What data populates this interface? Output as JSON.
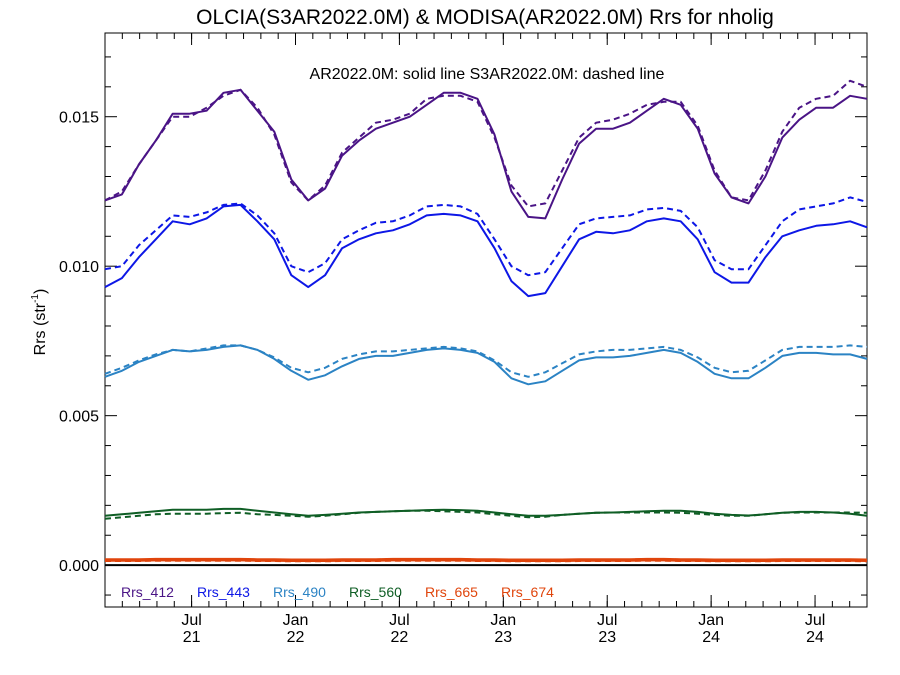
{
  "chart_data": {
    "type": "line",
    "title": "OLCIA(S3AR2022.0M) & MODISA(AR2022.0M)  Rrs for nholig",
    "annotation": "AR2022.0M: solid line   S3AR2022.0M: dashed line",
    "ylabel_main": "Rrs (str",
    "ylabel_sup": "-1",
    "ylabel_tail": ")",
    "xlim": [
      0,
      44
    ],
    "ylim": [
      -0.0014,
      0.0178
    ],
    "yticks": [
      {
        "value": 0.0,
        "label": "0.000"
      },
      {
        "value": 0.005,
        "label": "0.005"
      },
      {
        "value": 0.01,
        "label": "0.010"
      },
      {
        "value": 0.015,
        "label": "0.015"
      }
    ],
    "xticks": [
      {
        "x": 5,
        "month": "Jul",
        "year": "21"
      },
      {
        "x": 11,
        "month": "Jan",
        "year": "22"
      },
      {
        "x": 17,
        "month": "Jul",
        "year": "22"
      },
      {
        "x": 23,
        "month": "Jan",
        "year": "23"
      },
      {
        "x": 29,
        "month": "Jul",
        "year": "23"
      },
      {
        "x": 35,
        "month": "Jan",
        "year": "24"
      },
      {
        "x": 41,
        "month": "Jul",
        "year": "24"
      }
    ],
    "zero_line": 0.0,
    "series": [
      {
        "name": "Rrs_412",
        "color": "#4a1486",
        "solid": [
          0.0122,
          0.0124,
          0.0134,
          0.0142,
          0.0151,
          0.0151,
          0.0152,
          0.0158,
          0.0159,
          0.0152,
          0.0145,
          0.0129,
          0.0122,
          0.0126,
          0.0137,
          0.0142,
          0.0146,
          0.0148,
          0.015,
          0.0154,
          0.0158,
          0.0158,
          0.0156,
          0.0144,
          0.0125,
          0.01165,
          0.0116,
          0.0129,
          0.0141,
          0.0146,
          0.0146,
          0.0148,
          0.0152,
          0.0156,
          0.0154,
          0.0146,
          0.0131,
          0.0123,
          0.0121,
          0.013,
          0.0143,
          0.0149,
          0.0153,
          0.0153,
          0.0157,
          0.0156
        ],
        "dashed": [
          0.0122,
          0.0125,
          0.0134,
          0.0142,
          0.015,
          0.015,
          0.0153,
          0.0157,
          0.0159,
          0.0153,
          0.0144,
          0.0128,
          0.0122,
          0.0127,
          0.0138,
          0.0143,
          0.0148,
          0.0149,
          0.0151,
          0.0156,
          0.0157,
          0.0157,
          0.0155,
          0.0143,
          0.0127,
          0.012,
          0.0121,
          0.0132,
          0.0143,
          0.0148,
          0.0149,
          0.0151,
          0.0154,
          0.0155,
          0.0155,
          0.0147,
          0.0132,
          0.0123,
          0.0122,
          0.0132,
          0.0145,
          0.0153,
          0.0156,
          0.0157,
          0.0162,
          0.016
        ]
      },
      {
        "name": "Rrs_443",
        "color": "#0d17e6",
        "solid": [
          0.0093,
          0.0096,
          0.0103,
          0.0109,
          0.0115,
          0.0114,
          0.0116,
          0.012,
          0.01205,
          0.0115,
          0.0109,
          0.0097,
          0.0093,
          0.0097,
          0.0106,
          0.0109,
          0.0111,
          0.0112,
          0.0114,
          0.0117,
          0.01175,
          0.0117,
          0.0115,
          0.0106,
          0.0095,
          0.009,
          0.0091,
          0.01,
          0.0109,
          0.01115,
          0.0111,
          0.0112,
          0.0115,
          0.0116,
          0.0115,
          0.0109,
          0.0098,
          0.00945,
          0.00945,
          0.0103,
          0.011,
          0.0112,
          0.01135,
          0.0114,
          0.0115,
          0.0113
        ],
        "dashed": [
          0.0099,
          0.01,
          0.0107,
          0.0112,
          0.0117,
          0.01165,
          0.0118,
          0.01205,
          0.0121,
          0.0117,
          0.0111,
          0.01,
          0.0098,
          0.0101,
          0.0109,
          0.0112,
          0.01145,
          0.0115,
          0.0117,
          0.012,
          0.01205,
          0.012,
          0.01175,
          0.0109,
          0.01,
          0.0097,
          0.0098,
          0.0106,
          0.0114,
          0.0116,
          0.01165,
          0.0117,
          0.0119,
          0.01195,
          0.01185,
          0.0113,
          0.0102,
          0.0099,
          0.0099,
          0.0107,
          0.0115,
          0.0119,
          0.012,
          0.0121,
          0.0123,
          0.01215
        ]
      },
      {
        "name": "Rrs_490",
        "color": "#2b83c4",
        "solid": [
          0.0063,
          0.0065,
          0.0068,
          0.007,
          0.0072,
          0.00715,
          0.0072,
          0.0073,
          0.00735,
          0.0072,
          0.0069,
          0.0065,
          0.0062,
          0.00635,
          0.00665,
          0.0069,
          0.007,
          0.007,
          0.0071,
          0.0072,
          0.00725,
          0.0072,
          0.0071,
          0.0068,
          0.00625,
          0.00605,
          0.00615,
          0.0065,
          0.00685,
          0.00695,
          0.00695,
          0.007,
          0.0071,
          0.0072,
          0.0071,
          0.0068,
          0.0064,
          0.00625,
          0.00625,
          0.0066,
          0.007,
          0.0071,
          0.0071,
          0.00705,
          0.00705,
          0.0069
        ],
        "dashed": [
          0.0064,
          0.0066,
          0.00685,
          0.00705,
          0.0072,
          0.00715,
          0.00725,
          0.00735,
          0.00735,
          0.0072,
          0.00695,
          0.0066,
          0.00645,
          0.0066,
          0.0069,
          0.00705,
          0.00715,
          0.00715,
          0.0072,
          0.00725,
          0.0073,
          0.00725,
          0.00715,
          0.00685,
          0.00645,
          0.0063,
          0.00645,
          0.00675,
          0.00705,
          0.00715,
          0.0072,
          0.0072,
          0.00725,
          0.0073,
          0.0072,
          0.00695,
          0.0066,
          0.00645,
          0.0065,
          0.00685,
          0.0072,
          0.0073,
          0.0073,
          0.0073,
          0.00735,
          0.0073
        ]
      },
      {
        "name": "Rrs_560",
        "color": "#0f5e25",
        "solid": [
          0.00165,
          0.0017,
          0.00175,
          0.0018,
          0.00185,
          0.00185,
          0.00185,
          0.00188,
          0.00188,
          0.00182,
          0.00176,
          0.0017,
          0.00165,
          0.00168,
          0.00172,
          0.00176,
          0.00178,
          0.0018,
          0.00182,
          0.00184,
          0.00185,
          0.00184,
          0.00182,
          0.00176,
          0.0017,
          0.00165,
          0.00165,
          0.00168,
          0.00172,
          0.00175,
          0.00176,
          0.00178,
          0.0018,
          0.00182,
          0.00182,
          0.00178,
          0.00172,
          0.00168,
          0.00166,
          0.0017,
          0.00175,
          0.00178,
          0.00178,
          0.00176,
          0.00172,
          0.00165
        ],
        "dashed": [
          0.00155,
          0.0016,
          0.00165,
          0.0017,
          0.00172,
          0.00172,
          0.00172,
          0.00174,
          0.00175,
          0.0017,
          0.00168,
          0.00165,
          0.00162,
          0.00165,
          0.0017,
          0.00175,
          0.00178,
          0.0018,
          0.00182,
          0.00182,
          0.0018,
          0.00178,
          0.00176,
          0.0017,
          0.00165,
          0.0016,
          0.00162,
          0.00168,
          0.00172,
          0.00175,
          0.00176,
          0.00176,
          0.00176,
          0.00176,
          0.00175,
          0.00172,
          0.00168,
          0.00165,
          0.00165,
          0.0017,
          0.00175,
          0.00176,
          0.00176,
          0.00176,
          0.00176,
          0.00175
        ]
      },
      {
        "name": "Rrs_665",
        "color": "#e0450c",
        "solid": [
          0.0002,
          0.0002,
          0.0002,
          0.00021,
          0.00021,
          0.00021,
          0.00021,
          0.00021,
          0.00021,
          0.0002,
          0.0002,
          0.00019,
          0.00019,
          0.00019,
          0.0002,
          0.0002,
          0.0002,
          0.00021,
          0.00021,
          0.00021,
          0.00021,
          0.00021,
          0.0002,
          0.0002,
          0.00019,
          0.00019,
          0.00019,
          0.00019,
          0.0002,
          0.0002,
          0.0002,
          0.0002,
          0.00021,
          0.00021,
          0.0002,
          0.0002,
          0.00019,
          0.00019,
          0.00019,
          0.00019,
          0.0002,
          0.0002,
          0.0002,
          0.0002,
          0.0002,
          0.00019
        ],
        "dashed": [
          0.00018,
          0.00018,
          0.00019,
          0.00019,
          0.0002,
          0.0002,
          0.0002,
          0.0002,
          0.0002,
          0.00019,
          0.00019,
          0.00018,
          0.00018,
          0.00018,
          0.00019,
          0.00019,
          0.00019,
          0.0002,
          0.0002,
          0.0002,
          0.0002,
          0.0002,
          0.00019,
          0.00019,
          0.00018,
          0.00018,
          0.00018,
          0.00018,
          0.00019,
          0.00019,
          0.00019,
          0.00019,
          0.0002,
          0.0002,
          0.00019,
          0.00019,
          0.00018,
          0.00018,
          0.00018,
          0.00018,
          0.00019,
          0.00019,
          0.00019,
          0.00019,
          0.00019,
          0.00018
        ]
      },
      {
        "name": "Rrs_674",
        "color": "#e0450c",
        "solid": [
          0.00015,
          0.00015,
          0.00015,
          0.00016,
          0.00016,
          0.00016,
          0.00016,
          0.00016,
          0.00016,
          0.00015,
          0.00015,
          0.00014,
          0.00014,
          0.00014,
          0.00015,
          0.00015,
          0.00015,
          0.00016,
          0.00016,
          0.00016,
          0.00016,
          0.00016,
          0.00015,
          0.00015,
          0.00014,
          0.00014,
          0.00014,
          0.00014,
          0.00015,
          0.00015,
          0.00015,
          0.00015,
          0.00016,
          0.00016,
          0.00015,
          0.00015,
          0.00014,
          0.00014,
          0.00014,
          0.00014,
          0.00015,
          0.00015,
          0.00015,
          0.00015,
          0.00015,
          0.00014
        ],
        "dashed": [
          0.00014,
          0.00014,
          0.00014,
          0.00015,
          0.00015,
          0.00015,
          0.00015,
          0.00015,
          0.00015,
          0.00014,
          0.00014,
          0.00013,
          0.00013,
          0.00013,
          0.00014,
          0.00014,
          0.00014,
          0.00015,
          0.00015,
          0.00015,
          0.00015,
          0.00015,
          0.00014,
          0.00014,
          0.00013,
          0.00013,
          0.00013,
          0.00013,
          0.00014,
          0.00014,
          0.00014,
          0.00014,
          0.00015,
          0.00015,
          0.00014,
          0.00014,
          0.00013,
          0.00013,
          0.00013,
          0.00013,
          0.00014,
          0.00014,
          0.00014,
          0.00014,
          0.00014,
          0.00013
        ]
      }
    ]
  }
}
